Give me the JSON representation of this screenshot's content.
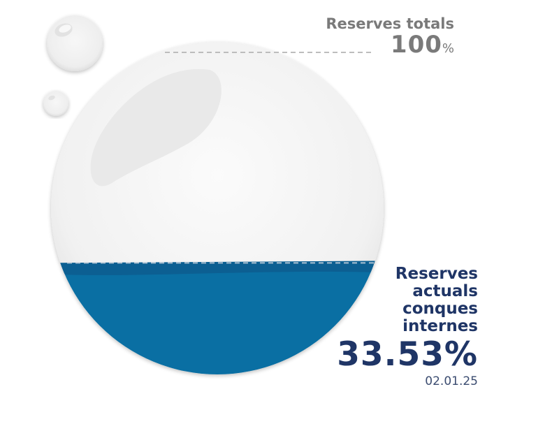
{
  "chart_data": {
    "type": "gauge",
    "max": {
      "label": "Reserves totals",
      "value": "100",
      "unit": "%"
    },
    "current": {
      "label_lines": [
        "Reserves",
        "actuals",
        "conques",
        "internes"
      ],
      "value_text": "33.53%",
      "value": 33.53,
      "date": "02.01.25"
    },
    "colors": {
      "water": "#0a6fa3",
      "water_surface": "#0c5f92",
      "sphere": "#f2f2f2",
      "total_text": "#7a7a7a",
      "current_text": "#1f3566"
    }
  }
}
